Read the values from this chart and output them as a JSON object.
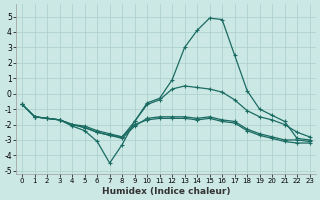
{
  "xlabel": "Humidex (Indice chaleur)",
  "background_color": "#cce8e5",
  "grid_color": "#aacfcc",
  "line_color": "#1a6b62",
  "xlim": [
    -0.5,
    23.5
  ],
  "ylim": [
    -5.2,
    5.8
  ],
  "xticks": [
    0,
    1,
    2,
    3,
    4,
    5,
    6,
    7,
    8,
    9,
    10,
    11,
    12,
    13,
    14,
    15,
    16,
    17,
    18,
    19,
    20,
    21,
    22,
    23
  ],
  "yticks": [
    -5,
    -4,
    -3,
    -2,
    -1,
    0,
    1,
    2,
    3,
    4,
    5
  ],
  "lines": [
    {
      "x": [
        0,
        1,
        2,
        3,
        4,
        5,
        6,
        7,
        8,
        9,
        10,
        11,
        12,
        13,
        14,
        15,
        16,
        17,
        18,
        19,
        20,
        21,
        22,
        23
      ],
      "y": [
        -0.7,
        -1.5,
        -1.6,
        -1.7,
        -2.1,
        -2.4,
        -3.1,
        -4.5,
        -3.3,
        -1.8,
        -0.6,
        -0.3,
        0.9,
        3.0,
        4.1,
        4.9,
        4.8,
        2.5,
        0.2,
        -1.0,
        -1.4,
        -1.8,
        -2.9,
        -3.0
      ]
    },
    {
      "x": [
        0,
        1,
        2,
        3,
        4,
        5,
        6,
        7,
        8,
        9,
        10,
        11,
        12,
        13,
        14,
        15,
        16,
        17,
        18,
        19,
        20,
        21,
        22,
        23
      ],
      "y": [
        -0.7,
        -1.5,
        -1.6,
        -1.7,
        -2.0,
        -2.2,
        -2.5,
        -2.7,
        -2.8,
        -1.8,
        -0.7,
        -0.4,
        0.3,
        0.5,
        0.4,
        0.3,
        0.1,
        -0.4,
        -1.1,
        -1.5,
        -1.7,
        -2.0,
        -2.5,
        -2.8
      ]
    },
    {
      "x": [
        0,
        1,
        2,
        3,
        4,
        5,
        6,
        7,
        8,
        9,
        10,
        11,
        12,
        13,
        14,
        15,
        16,
        17,
        18,
        19,
        20,
        21,
        22,
        23
      ],
      "y": [
        -0.7,
        -1.5,
        -1.6,
        -1.7,
        -2.0,
        -2.2,
        -2.5,
        -2.7,
        -2.9,
        -2.1,
        -1.6,
        -1.5,
        -1.5,
        -1.5,
        -1.6,
        -1.5,
        -1.7,
        -1.8,
        -2.3,
        -2.6,
        -2.8,
        -3.0,
        -3.0,
        -3.1
      ]
    },
    {
      "x": [
        0,
        1,
        2,
        3,
        4,
        5,
        6,
        7,
        8,
        9,
        10,
        11,
        12,
        13,
        14,
        15,
        16,
        17,
        18,
        19,
        20,
        21,
        22,
        23
      ],
      "y": [
        -0.7,
        -1.5,
        -1.6,
        -1.7,
        -2.0,
        -2.1,
        -2.4,
        -2.6,
        -2.8,
        -2.0,
        -1.7,
        -1.6,
        -1.6,
        -1.6,
        -1.7,
        -1.6,
        -1.8,
        -1.9,
        -2.4,
        -2.7,
        -2.9,
        -3.1,
        -3.2,
        -3.2
      ]
    }
  ]
}
